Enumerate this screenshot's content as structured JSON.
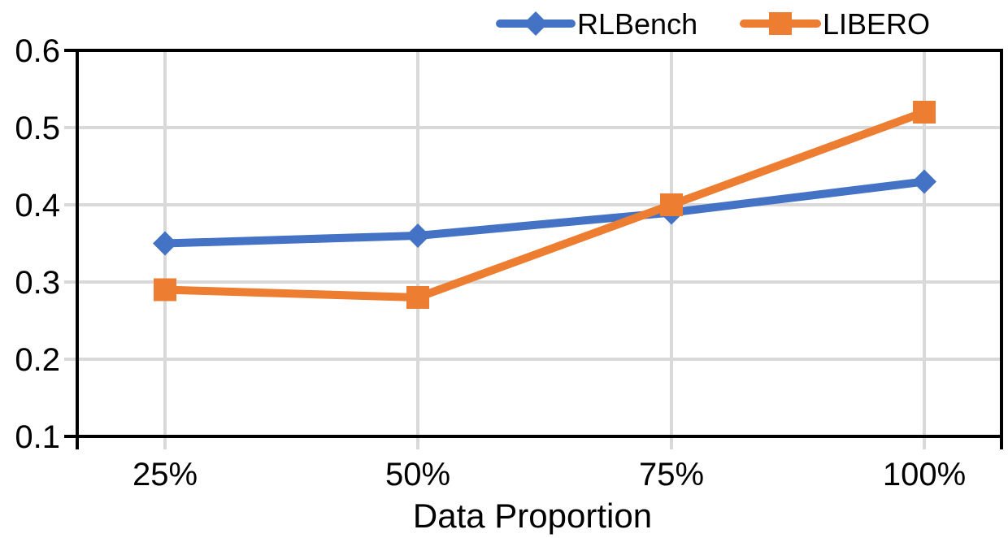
{
  "chart_data": {
    "type": "line",
    "title": "",
    "xlabel": "Data Proportion",
    "ylabel": "",
    "categories": [
      "25%",
      "50%",
      "75%",
      "100%"
    ],
    "series": [
      {
        "name": "RLBench",
        "color": "#4472C4",
        "marker": "diamond",
        "values": [
          0.35,
          0.36,
          0.39,
          0.43
        ]
      },
      {
        "name": "LIBERO",
        "color": "#ED7D31",
        "marker": "square",
        "values": [
          0.29,
          0.28,
          0.4,
          0.52
        ]
      }
    ],
    "ylim": [
      0.1,
      0.6
    ],
    "y_ticks": [
      0.6,
      0.5,
      0.4,
      0.3,
      0.2,
      0.1
    ],
    "y_tick_labels": [
      "0.6",
      "0.5",
      "0.4",
      "0.3",
      "0.2",
      "0.1"
    ],
    "grid": true,
    "legend_position": "top-center",
    "styles": {
      "grid_color": "#D9D9D9",
      "axis_color": "#000000",
      "text_color": "#000000",
      "background": "#FFFFFF"
    }
  }
}
